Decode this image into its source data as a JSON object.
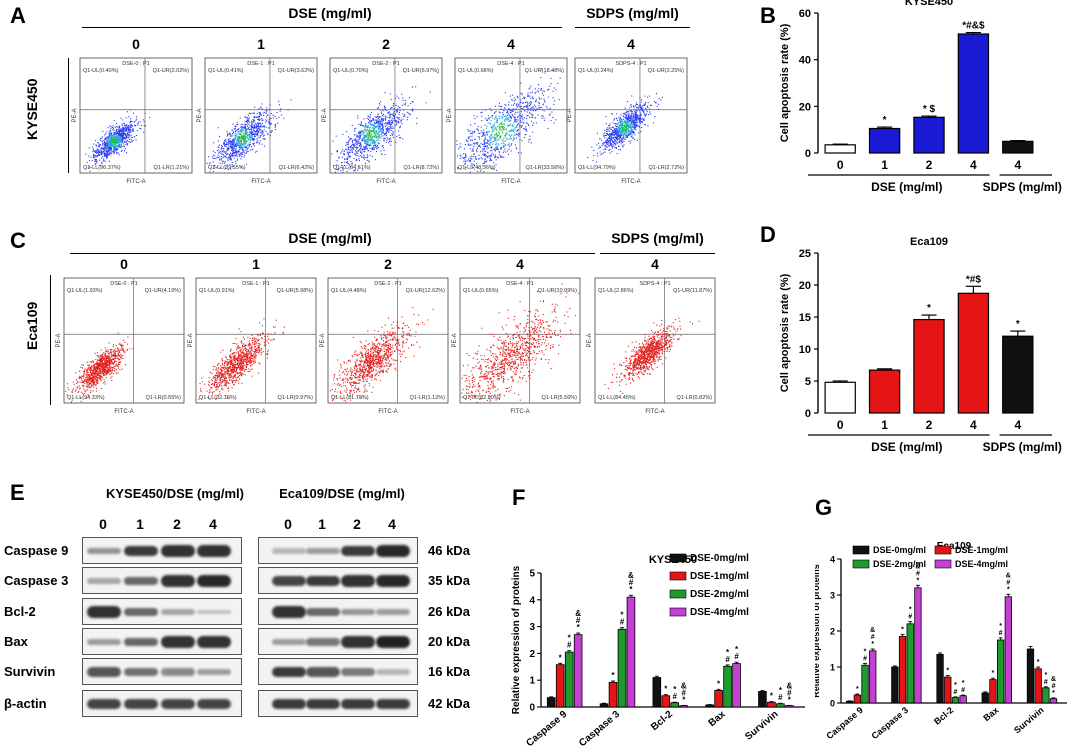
{
  "panels": {
    "a": {
      "label": "A",
      "group_label": "DSE (mg/ml)",
      "sdps_label": "SDPS (mg/ml)",
      "row_label": "KYSE450",
      "doses": [
        "0",
        "1",
        "2",
        "4",
        "4"
      ],
      "titles": [
        "DSE-0 : P1",
        "DSE-1 : P1",
        "DSE-2 : P1",
        "DSE-4 : P1",
        "SDPS-4 : P1"
      ],
      "quads": [
        [
          "Q1-UL(0.40%)",
          "Q1-UR(2.02%)",
          "Q1-LL(96.37%)",
          "Q1-LR(1.21%)"
        ],
        [
          "Q1-UL(0.41%)",
          "Q1-UR(3.62%)",
          "Q1-LL(89.55%)",
          "Q1-LR(6.42%)"
        ],
        [
          "Q1-UL(0.70%)",
          "Q1-UR(6.97%)",
          "Q1-LL(84.51%)",
          "Q1-LR(8.72%)"
        ],
        [
          "Q1-UL(0.68%)",
          "Q1-UR(18.48%)",
          "Q1-LL(48.36%)",
          "Q1-LR(33.56%)"
        ],
        [
          "Q1-UL(0.24%)",
          "Q1-UR(2.25%)",
          "Q1-LL(94.79%)",
          "Q1-LR(2.72%)"
        ]
      ],
      "axis_x": "FITC-A",
      "axis_y": "PE-A"
    },
    "c": {
      "label": "C",
      "group_label": "DSE (mg/ml)",
      "sdps_label": "SDPS (mg/ml)",
      "row_label": "Eca109",
      "doses": [
        "0",
        "1",
        "2",
        "4",
        "4"
      ],
      "titles": [
        "DSE-0 : P1",
        "DSE-1 : P1",
        "DSE-2 : P1",
        "DSE-4 : P1",
        "SDPS-4 : P1"
      ],
      "quads": [
        [
          "Q1-UL(1.93%)",
          "Q1-UR(4.19%)",
          "Q1-LL(94.33%)",
          "Q1-LR(0.55%)"
        ],
        [
          "Q1-UL(0.91%)",
          "Q1-UR(5.98%)",
          "Q1-LL(92.16%)",
          "Q1-LR(0.97%)"
        ],
        [
          "Q1-UL(4.48%)",
          "Q1-UR(12.62%)",
          "Q1-LL(81.78%)",
          "Q1-LR(1.12%)"
        ],
        [
          "Q1-UL(0.65%)",
          "Q1-UR(10.99%)",
          "Q1-LL(82.60%)",
          "Q1-LR(5.56%)"
        ],
        [
          "Q1-UL(2.86%)",
          "Q1-UR(11.87%)",
          "Q1-LL(84.45%)",
          "Q1-LR(0.82%)"
        ]
      ],
      "axis_x": "FITC-A",
      "axis_y": "PE-A"
    },
    "e": {
      "label": "E",
      "left_title": "KYSE450/DSE (mg/ml)",
      "right_title": "Eca109/DSE (mg/ml)",
      "lanes": [
        "0",
        "1",
        "2",
        "4"
      ],
      "proteins": [
        "Caspase 9",
        "Caspase 3",
        "Bcl-2",
        "Bax",
        "Survivin",
        "β-actin"
      ],
      "kda": [
        "46 kDa",
        "35 kDa",
        "26 kDa",
        "20 kDa",
        "16 kDa",
        "42 kDa"
      ]
    }
  },
  "chart_data": [
    {
      "id": "B",
      "type": "bar",
      "title": "KYSE450",
      "categories": [
        "0",
        "1",
        "2",
        "4",
        "4"
      ],
      "values": [
        3.5,
        10.5,
        15.3,
        51.0,
        5.0
      ],
      "errors": [
        0.3,
        0.6,
        0.5,
        0.6,
        0.3
      ],
      "colors": [
        "#ffffff",
        "#1a1ad4",
        "#1a1ad4",
        "#1a1ad4",
        "#111111"
      ],
      "annotations": [
        "",
        "*",
        "* $",
        "*#&$",
        ""
      ],
      "ylabel": "Cell apoptosis rate (%)",
      "ylim": [
        0,
        60
      ],
      "yticks": [
        0,
        20,
        40,
        60
      ],
      "group_label": "DSE (mg/ml)",
      "sdps_label": "SDPS (mg/ml)"
    },
    {
      "id": "D",
      "type": "bar",
      "title": "Eca109",
      "categories": [
        "0",
        "1",
        "2",
        "4",
        "4"
      ],
      "values": [
        4.8,
        6.7,
        14.6,
        18.7,
        12.0
      ],
      "errors": [
        0.2,
        0.2,
        0.7,
        1.1,
        0.8
      ],
      "colors": [
        "#ffffff",
        "#e51515",
        "#e51515",
        "#e51515",
        "#111111"
      ],
      "annotations": [
        "",
        "",
        "*",
        "*#$",
        "*"
      ],
      "ylabel": "Cell apoptosis rate (%)",
      "ylim": [
        0,
        25
      ],
      "yticks": [
        0,
        5,
        10,
        15,
        20,
        25
      ],
      "group_label": "DSE (mg/ml)",
      "sdps_label": "SDPS (mg/ml)"
    },
    {
      "id": "F",
      "type": "bar",
      "title": "KYSE450",
      "categories": [
        "Caspase 9",
        "Caspase 3",
        "Bcl-2",
        "Bax",
        "Survivin"
      ],
      "series": [
        {
          "name": "DSE-0mg/ml",
          "color": "#111111",
          "values": [
            0.35,
            0.12,
            1.1,
            0.08,
            0.58
          ],
          "errors": [
            0.03,
            0.02,
            0.05,
            0.01,
            0.03
          ],
          "ann": [
            "",
            "",
            "",
            "",
            ""
          ]
        },
        {
          "name": "DSE-1mg/ml",
          "color": "#e51515",
          "values": [
            1.58,
            0.92,
            0.42,
            0.62,
            0.18
          ],
          "errors": [
            0.05,
            0.05,
            0.04,
            0.04,
            0.02
          ],
          "ann": [
            "*",
            "*",
            "*",
            "*",
            "*"
          ]
        },
        {
          "name": "DSE-2mg/ml",
          "color": "#1f9a2f",
          "values": [
            2.05,
            2.9,
            0.16,
            1.52,
            0.12
          ],
          "errors": [
            0.05,
            0.06,
            0.02,
            0.05,
            0.02
          ],
          "ann": [
            "*\n#",
            "*\n#",
            "*\n#",
            "*\n#",
            "*\n#"
          ]
        },
        {
          "name": "DSE-4mg/ml",
          "color": "#c53fd6",
          "values": [
            2.7,
            4.1,
            0.05,
            1.62,
            0.05
          ],
          "errors": [
            0.06,
            0.07,
            0.01,
            0.05,
            0.01
          ],
          "ann": [
            "&\n#\n*",
            "&\n#\n*",
            "&\n#\n*",
            "*\n#",
            "&\n#\n*"
          ]
        }
      ],
      "ylabel": "Relative expression of proteins",
      "ylim": [
        0,
        5
      ],
      "yticks": [
        0,
        1,
        2,
        3,
        4,
        5
      ]
    },
    {
      "id": "G",
      "type": "bar",
      "title": "Eca109",
      "categories": [
        "Caspase 9",
        "Caspase 3",
        "Bcl-2",
        "Bax",
        "Survivin"
      ],
      "series": [
        {
          "name": "DSE-0mg/ml",
          "color": "#111111",
          "values": [
            0.05,
            1.0,
            1.35,
            0.28,
            1.5
          ],
          "errors": [
            0.01,
            0.03,
            0.04,
            0.03,
            0.07
          ],
          "ann": [
            "",
            "",
            "",
            "",
            ""
          ]
        },
        {
          "name": "DSE-1mg/ml",
          "color": "#e51515",
          "values": [
            0.22,
            1.85,
            0.72,
            0.65,
            0.95
          ],
          "errors": [
            0.03,
            0.05,
            0.04,
            0.04,
            0.05
          ],
          "ann": [
            "*",
            "*",
            "*",
            "*",
            "*"
          ]
        },
        {
          "name": "DSE-2mg/ml",
          "color": "#1f9a2f",
          "values": [
            1.05,
            2.2,
            0.15,
            1.75,
            0.42
          ],
          "errors": [
            0.05,
            0.06,
            0.02,
            0.06,
            0.03
          ],
          "ann": [
            "*\n#",
            "*\n#",
            "*\n#",
            "*\n#",
            "*\n#"
          ]
        },
        {
          "name": "DSE-4mg/ml",
          "color": "#c53fd6",
          "values": [
            1.45,
            3.2,
            0.2,
            2.95,
            0.12
          ],
          "errors": [
            0.05,
            0.07,
            0.02,
            0.07,
            0.02
          ],
          "ann": [
            "&\n#\n*",
            "&\n#\n*",
            "*\n#",
            "&\n#\n*",
            "&\n#\n*"
          ]
        }
      ],
      "ylabel": "Relative expression of proteins",
      "ylim": [
        0,
        4
      ],
      "yticks": [
        0,
        1,
        2,
        3,
        4
      ]
    }
  ]
}
